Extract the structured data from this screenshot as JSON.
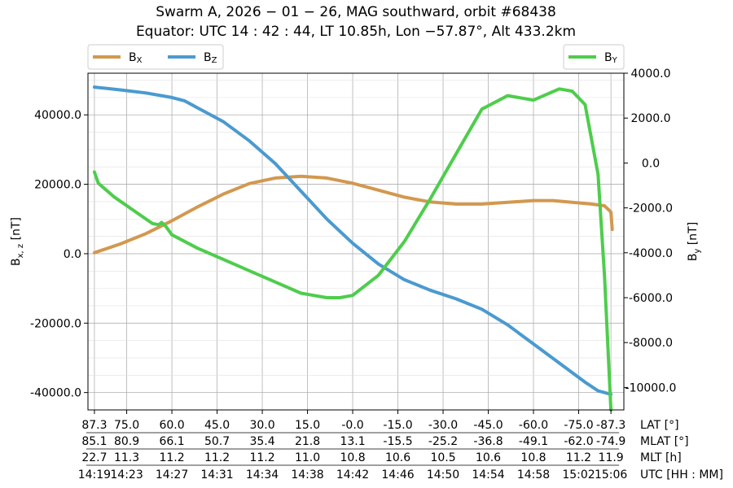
{
  "chart_data": {
    "type": "line",
    "title_line1": "Swarm A,  2026 − 01 − 26,  MAG southward,  orbit #68438",
    "title_line2": "Equator:  UTC 14 : 42 : 44,  LT 10.85h,  Lon  −57.87°,  Alt 433.2km",
    "ylabel_left": "B",
    "ylabel_left_sub": "x, z",
    "ylabel_left_unit": " [nT]",
    "ylabel_right": "B",
    "ylabel_right_sub": "y",
    "ylabel_right_unit": " [nT]",
    "ylim_left": [
      -45000,
      52000
    ],
    "ylim_right": [
      -11000,
      4000
    ],
    "yticks_left": [
      "40000.0",
      "20000.0",
      "0.0",
      "-20000.0",
      "-40000.0"
    ],
    "yticks_left_values": [
      40000,
      20000,
      0,
      -20000,
      -40000
    ],
    "yticks_right": [
      "4000.0",
      "2000.0",
      "0.0",
      "-2000.0",
      "-4000.0",
      "-6000.0",
      "-8000.0",
      "-10000.0"
    ],
    "yticks_right_values": [
      4000,
      2000,
      0,
      -2000,
      -4000,
      -6000,
      -8000,
      -10000
    ],
    "grid": true,
    "x_rows": [
      {
        "label": "LAT [°]",
        "ticks": [
          "87.3",
          "75.0",
          "60.0",
          "45.0",
          "30.0",
          "15.0",
          "-0.0",
          "-15.0",
          "-30.0",
          "-45.0",
          "-60.0",
          "-75.0",
          "-87.3"
        ]
      },
      {
        "label": "MLAT [°]",
        "ticks": [
          "85.1",
          "80.9",
          "66.1",
          "50.7",
          "35.4",
          "21.8",
          "13.1",
          "-15.5",
          "-25.2",
          "-36.8",
          "-49.1",
          "-62.0",
          "-74.9"
        ]
      },
      {
        "label": "MLT [h]",
        "ticks": [
          "22.7",
          "11.3",
          "11.2",
          "11.2",
          "11.2",
          "11.0",
          "10.8",
          "10.6",
          "10.5",
          "10.6",
          "10.8",
          "11.2",
          "11.9"
        ]
      },
      {
        "label": "UTC [HH : MM]",
        "ticks": [
          "14:19",
          "14:23",
          "14:27",
          "14:31",
          "14:34",
          "14:38",
          "14:42",
          "14:46",
          "14:50",
          "14:54",
          "14:58",
          "15:02",
          "15:06"
        ]
      }
    ],
    "x_tick_positions": [
      0.0,
      2.5,
      6.0,
      9.5,
      13.0,
      16.5,
      20.0,
      23.5,
      27.0,
      30.5,
      34.0,
      37.5,
      40.0
    ],
    "xlim": [
      -0.5,
      41.0
    ],
    "legend_left": [
      {
        "name": "B",
        "sub": "X",
        "color": "#d2984f"
      },
      {
        "name": "B",
        "sub": "Z",
        "color": "#4a9ad0"
      }
    ],
    "legend_right": [
      {
        "name": "B",
        "sub": "Y",
        "color": "#4ecd4c"
      }
    ],
    "series": [
      {
        "name": "BX",
        "axis": "left",
        "color": "#d2984f",
        "points": [
          [
            0,
            300
          ],
          [
            2,
            2800
          ],
          [
            4,
            5800
          ],
          [
            6,
            9500
          ],
          [
            8,
            13500
          ],
          [
            10,
            17200
          ],
          [
            12,
            20200
          ],
          [
            14,
            21800
          ],
          [
            16,
            22300
          ],
          [
            18,
            21800
          ],
          [
            20,
            20300
          ],
          [
            22,
            18300
          ],
          [
            24,
            16300
          ],
          [
            26,
            14900
          ],
          [
            28,
            14300
          ],
          [
            30,
            14300
          ],
          [
            32,
            14800
          ],
          [
            34,
            15300
          ],
          [
            35.5,
            15300
          ],
          [
            37,
            14800
          ],
          [
            38.5,
            14300
          ],
          [
            39.5,
            13800
          ],
          [
            40.0,
            12000
          ],
          [
            40.1,
            7000
          ]
        ]
      },
      {
        "name": "BZ",
        "axis": "left",
        "color": "#4a9ad0",
        "points": [
          [
            0,
            48000
          ],
          [
            2,
            47200
          ],
          [
            4,
            46300
          ],
          [
            6,
            45000
          ],
          [
            7,
            44000
          ],
          [
            8,
            42000
          ],
          [
            10,
            38000
          ],
          [
            12,
            32500
          ],
          [
            14,
            26000
          ],
          [
            16,
            18000
          ],
          [
            18,
            10000
          ],
          [
            20,
            3000
          ],
          [
            22,
            -3000
          ],
          [
            24,
            -7500
          ],
          [
            26,
            -10500
          ],
          [
            28,
            -13000
          ],
          [
            30,
            -16000
          ],
          [
            32,
            -20500
          ],
          [
            34,
            -26000
          ],
          [
            36,
            -31500
          ],
          [
            38,
            -37000
          ],
          [
            39,
            -39500
          ],
          [
            40.0,
            -40500
          ]
        ]
      },
      {
        "name": "BY",
        "axis": "right",
        "color": "#4ecd4c",
        "points": [
          [
            0,
            -400
          ],
          [
            0.3,
            -900
          ],
          [
            1.5,
            -1500
          ],
          [
            3,
            -2100
          ],
          [
            4,
            -2500
          ],
          [
            4.5,
            -2700
          ],
          [
            5,
            -2750
          ],
          [
            5.2,
            -2650
          ],
          [
            5.5,
            -2800
          ],
          [
            6,
            -3200
          ],
          [
            8,
            -3800
          ],
          [
            10,
            -4300
          ],
          [
            12,
            -4800
          ],
          [
            14,
            -5300
          ],
          [
            16,
            -5800
          ],
          [
            18,
            -6000
          ],
          [
            19,
            -6000
          ],
          [
            20,
            -5900
          ],
          [
            22,
            -5000
          ],
          [
            24,
            -3500
          ],
          [
            26,
            -1600
          ],
          [
            28,
            400
          ],
          [
            30,
            2400
          ],
          [
            32,
            3000
          ],
          [
            34,
            2800
          ],
          [
            36,
            3300
          ],
          [
            37,
            3200
          ],
          [
            38,
            2600
          ],
          [
            39,
            -500
          ],
          [
            39.5,
            -5000
          ],
          [
            40.0,
            -11000
          ]
        ]
      }
    ]
  }
}
